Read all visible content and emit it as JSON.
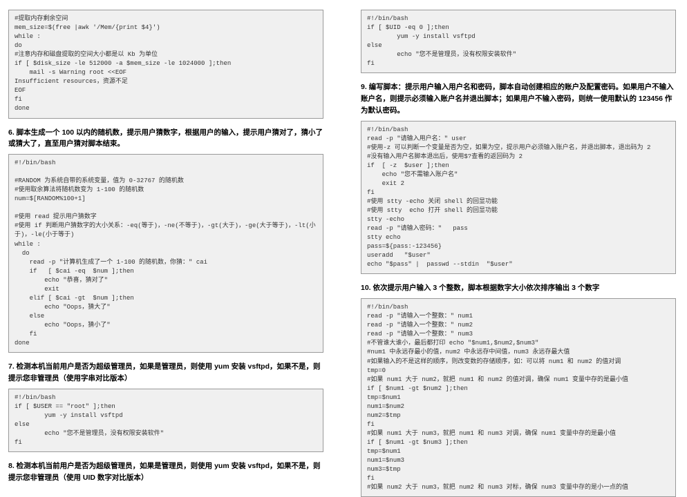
{
  "left": {
    "code1": "#提取内存剩余空间\nmem_size=$(free |awk '/Mem/{print $4}')\nwhile :\ndo\n#注意内存和磁盘提取的空间大小都是以 Kb 为单位\nif [ $disk_size -le 512000 -a $mem_size -le 1024000 ];then\n    mail -s Warning root <<EOF\nInsufficient resources，资源不足\nEOF\nfi\ndone",
    "h6": "6. 脚本生成一个 100 以内的随机数，提示用户猜数字，根据用户的输入，提示用户猜对了，猜小了或猜大了，直至用户猜对脚本结束。",
    "code2": "#!/bin/bash\n\n#RANDOM 为系统自带的系统变量，值为 0-32767 的随机数\n#使用取余算法将随机数变为 1-100 的随机数\nnum=$[RANDOM%100+1]\n\n#使用 read 提示用户猜数字\n#使用 if 判断用户猜数字的大小关系：-eq(等于)，-ne(不等于)，-gt(大于)，-ge(大于等于)，-lt(小于)，-le(小于等于)\nwhile :\n  do\n    read -p \"计算机生成了一个 1-100 的随机数，你猜：\" cai\n    if   [ $cai -eq  $num ];then\n        echo \"恭喜，猜对了\"\n        exit\n    elif [ $cai -gt  $num ];then\n        echo \"Oops，猜大了\"\n    else\n        echo \"Oops，猜小了\"\n    fi\ndone",
    "h7": "7. 检测本机当前用户是否为超级管理员，如果是管理员，则使用 yum 安装 vsftpd，如果不是，则提示您非管理员（使用字串对比版本）",
    "code3": "#!/bin/bash\nif [ $USER == \"root\" ];then\n        yum -y install vsftpd\nelse\n        echo \"您不是管理员，没有权限安装软件\"\nfi",
    "h8": "8. 检测本机当前用户是否为超级管理员，如果是管理员，则使用 yum 安装 vsftpd，如果不是，则提示您非管理员（使用 UID 数字对比版本）"
  },
  "right": {
    "code4": "#!/bin/bash\nif [ $UID -eq 0 ];then\n        yum -y install vsftpd\nelse\n        echo \"您不是管理员，没有权限安装软件\"\nfi",
    "h9": "9. 编写脚本：提示用户输入用户名和密码，脚本自动创建相应的账户及配置密码。如果用户不输入账户名，则提示必须输入账户名并退出脚本；如果用户不输入密码，则统一使用默认的 123456 作为默认密码。",
    "code5": "#!/bin/bash\nread -p \"请输入用户名：\" user\n#使用-z 可以判断一个变量是否为空，如果为空，提示用户必须输入账户名，并退出脚本，退出码为 2\n#没有输入用户名脚本退出后，使用$?查看的返回码为 2\nif  [ -z  $user ];then\n    echo \"您不需输入账户名\"\n    exit 2\nfi\n#使用 stty -echo 关闭 shell 的回显功能\n#使用 stty  echo 打开 shell 的回显功能\nstty -echo\nread -p \"请输入密码：\"   pass\nstty echo\npass=${pass:-123456}\nuseradd   \"$user\"\necho \"$pass\" |  passwd --stdin  \"$user\"",
    "h10": "10. 依次提示用户输入 3 个整数，脚本根据数字大小依次排序输出 3 个数字",
    "code6": "#!/bin/bash\nread -p \"请输入一个整数：\" num1\nread -p \"请输入一个整数：\" num2\nread -p \"请输入一个整数：\" num3\n#不管谁大谁小，最后都打印 echo \"$num1,$num2,$num3\"\n#num1 中永远存最小的值，num2 中永远存中间值，num3 永远存最大值\n#如果输入的不是这样的顺序，则改变数的存储顺序，如：可以将 num1 和 num2 的值对调\ntmp=0\n#如果 num1 大于 num2，就把 num1 和 num2 的值对调，确保 num1 变量中存的是最小值\nif [ $num1 -gt $num2 ];then\ntmp=$num1\nnum1=$num2\nnum2=$tmp\nfi\n#如果 num1 大于 num3，就把 num1 和 num3 对调，确保 num1 变量中存的是最小值\nif [ $num1 -gt $num3 ];then\ntmp=$num1\nnum1=$num3\nnum3=$tmp\nfi\n#如果 num2 大于 num3，就把 num2 和 num3 对标，确保 num3 变量中存的是小一点的值"
  }
}
